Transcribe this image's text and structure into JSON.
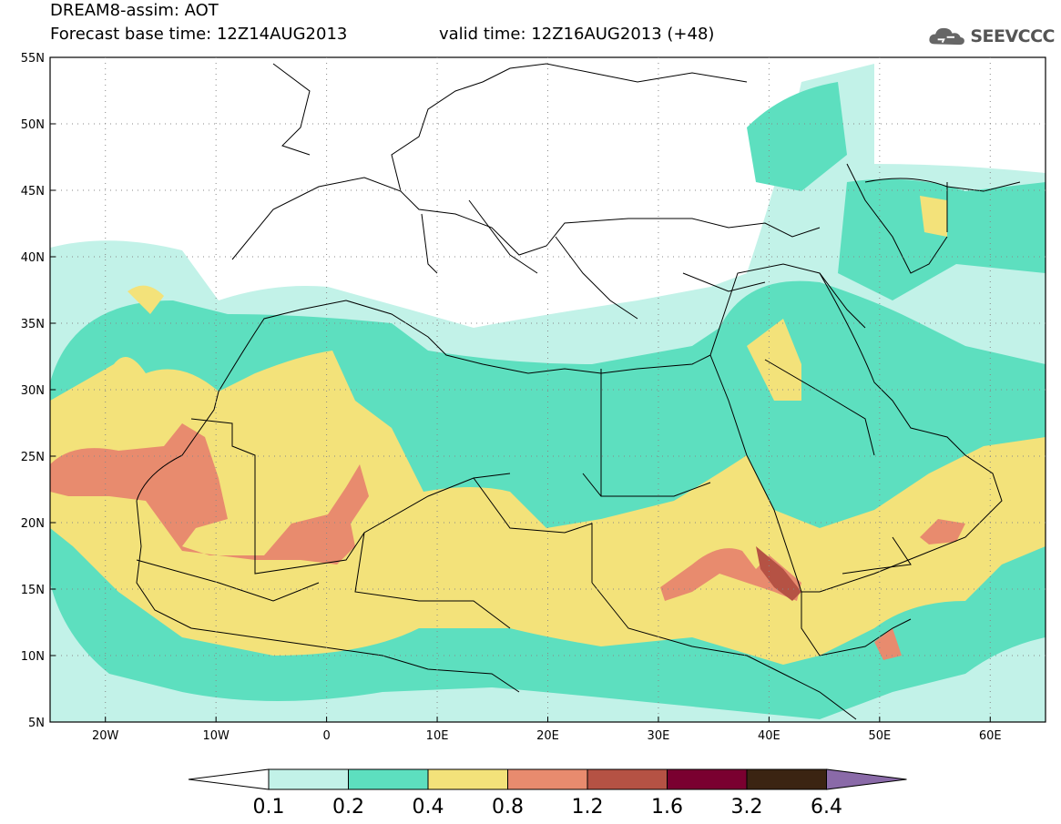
{
  "header": {
    "title": "DREAM8-assim: AOT",
    "base_time": "Forecast base time: 12Z14AUG2013",
    "valid_time": "valid time: 12Z16AUG2013 (+48)"
  },
  "logo": {
    "text": "SEEVCCC",
    "icon": "cloud-logo-icon"
  },
  "map": {
    "lon_range": [
      -25,
      65
    ],
    "lat_range": [
      5,
      55
    ],
    "lon_ticks": [
      "20W",
      "10W",
      "0",
      "10E",
      "20E",
      "30E",
      "40E",
      "50E",
      "60E"
    ],
    "lat_ticks": [
      "5N",
      "10N",
      "15N",
      "20N",
      "25N",
      "30N",
      "35N",
      "40N",
      "45N",
      "50N",
      "55N"
    ],
    "variable": "AOT",
    "grid": true
  },
  "colorbar": {
    "labels": [
      "0.1",
      "0.2",
      "0.4",
      "0.8",
      "1.2",
      "1.6",
      "3.2",
      "6.4"
    ],
    "colors": [
      "#ffffff",
      "#c2f2e8",
      "#5ddfbf",
      "#f3e27a",
      "#e88b6e",
      "#b55244",
      "#7a0030",
      "#3b2412",
      "#8a6aa8"
    ]
  },
  "colors": {
    "c01": "#c2f2e8",
    "c02": "#5ddfbf",
    "c04": "#f3e27a",
    "c08": "#e88b6e",
    "c12": "#b55244"
  }
}
